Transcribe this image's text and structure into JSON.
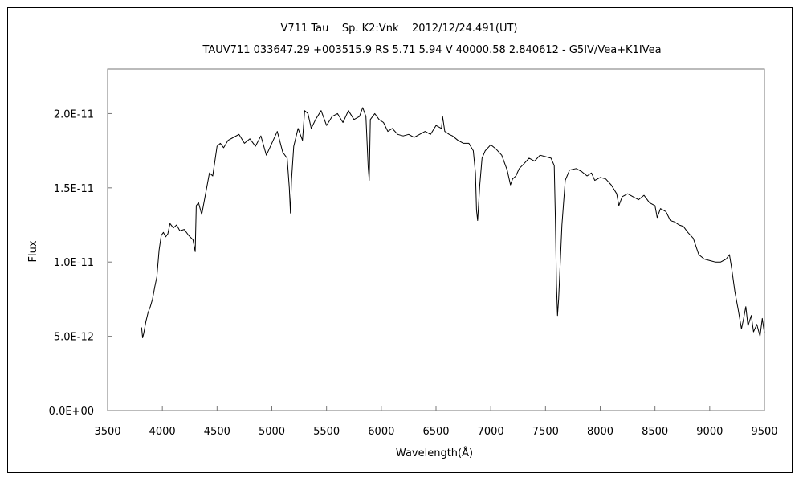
{
  "chart_data": {
    "type": "line",
    "title": "V711 Tau    Sp. K2:Vnk    2012/12/24.491(UT)",
    "subtitle": "TAUV711 033647.29 +003515.9 RS 5.71 5.94 V 40000.58 2.840612 - G5IV/Vea+K1IVea",
    "xlabel": "Wavelength(Å)",
    "ylabel": "Flux",
    "xlim": [
      3500,
      9500
    ],
    "ylim": [
      0,
      2.3e-11
    ],
    "grid": false,
    "x_ticks": [
      3500,
      4000,
      4500,
      5000,
      5500,
      6000,
      6500,
      7000,
      7500,
      8000,
      8500,
      9000,
      9500
    ],
    "x_tick_labels": [
      "3500",
      "4000",
      "4500",
      "5000",
      "5500",
      "6000",
      "6500",
      "7000",
      "7500",
      "8000",
      "8500",
      "9000",
      "9500"
    ],
    "y_ticks": [
      0,
      5e-12,
      1e-11,
      1.5e-11,
      2e-11
    ],
    "y_tick_labels": [
      "0.0E+00",
      "5.0E-12",
      "1.0E-11",
      "1.5E-11",
      "2.0E-11"
    ],
    "series": [
      {
        "color": "#000000",
        "x": [
          3810,
          3820,
          3830,
          3850,
          3870,
          3890,
          3910,
          3930,
          3950,
          3970,
          3990,
          4010,
          4030,
          4050,
          4070,
          4100,
          4130,
          4160,
          4200,
          4240,
          4280,
          4300,
          4310,
          4330,
          4360,
          4400,
          4430,
          4460,
          4500,
          4530,
          4560,
          4600,
          4650,
          4700,
          4750,
          4800,
          4850,
          4900,
          4950,
          5000,
          5050,
          5100,
          5140,
          5160,
          5170,
          5180,
          5200,
          5240,
          5280,
          5300,
          5330,
          5360,
          5400,
          5450,
          5500,
          5550,
          5600,
          5650,
          5700,
          5750,
          5800,
          5830,
          5860,
          5880,
          5890,
          5900,
          5940,
          5980,
          6020,
          6060,
          6100,
          6150,
          6200,
          6250,
          6300,
          6350,
          6400,
          6450,
          6500,
          6550,
          6560,
          6580,
          6620,
          6650,
          6700,
          6750,
          6800,
          6840,
          6860,
          6870,
          6880,
          6900,
          6920,
          6950,
          7000,
          7050,
          7100,
          7150,
          7180,
          7200,
          7230,
          7260,
          7300,
          7350,
          7400,
          7450,
          7500,
          7550,
          7580,
          7590,
          7600,
          7610,
          7620,
          7650,
          7680,
          7720,
          7780,
          7830,
          7880,
          7920,
          7950,
          8000,
          8050,
          8100,
          8150,
          8170,
          8200,
          8250,
          8300,
          8350,
          8400,
          8450,
          8500,
          8520,
          8550,
          8600,
          8640,
          8680,
          8720,
          8760,
          8800,
          8850,
          8900,
          8950,
          9000,
          9050,
          9100,
          9150,
          9180,
          9200,
          9230,
          9260,
          9290,
          9310,
          9330,
          9350,
          9380,
          9400,
          9430,
          9460,
          9480,
          9500
        ],
        "values": [
          5.6e-12,
          4.9e-12,
          5.2e-12,
          6e-12,
          6.6e-12,
          7e-12,
          7.5e-12,
          8.3e-12,
          9e-12,
          1.08e-11,
          1.18e-11,
          1.2e-11,
          1.17e-11,
          1.19e-11,
          1.26e-11,
          1.23e-11,
          1.25e-11,
          1.21e-11,
          1.22e-11,
          1.18e-11,
          1.15e-11,
          1.07e-11,
          1.38e-11,
          1.4e-11,
          1.32e-11,
          1.48e-11,
          1.6e-11,
          1.58e-11,
          1.78e-11,
          1.8e-11,
          1.77e-11,
          1.82e-11,
          1.84e-11,
          1.86e-11,
          1.8e-11,
          1.83e-11,
          1.78e-11,
          1.85e-11,
          1.72e-11,
          1.8e-11,
          1.88e-11,
          1.74e-11,
          1.7e-11,
          1.5e-11,
          1.33e-11,
          1.55e-11,
          1.78e-11,
          1.9e-11,
          1.82e-11,
          2.02e-11,
          2e-11,
          1.9e-11,
          1.96e-11,
          2.02e-11,
          1.92e-11,
          1.98e-11,
          2e-11,
          1.94e-11,
          2.02e-11,
          1.96e-11,
          1.98e-11,
          2.04e-11,
          1.98e-11,
          1.64e-11,
          1.55e-11,
          1.96e-11,
          2e-11,
          1.96e-11,
          1.94e-11,
          1.88e-11,
          1.9e-11,
          1.86e-11,
          1.85e-11,
          1.86e-11,
          1.84e-11,
          1.86e-11,
          1.88e-11,
          1.86e-11,
          1.92e-11,
          1.9e-11,
          1.98e-11,
          1.88e-11,
          1.86e-11,
          1.85e-11,
          1.82e-11,
          1.8e-11,
          1.8e-11,
          1.75e-11,
          1.6e-11,
          1.35e-11,
          1.28e-11,
          1.52e-11,
          1.7e-11,
          1.75e-11,
          1.79e-11,
          1.76e-11,
          1.72e-11,
          1.62e-11,
          1.52e-11,
          1.56e-11,
          1.58e-11,
          1.63e-11,
          1.66e-11,
          1.7e-11,
          1.68e-11,
          1.72e-11,
          1.71e-11,
          1.7e-11,
          1.65e-11,
          1.3e-11,
          8.5e-12,
          6.4e-12,
          7.5e-12,
          1.25e-11,
          1.55e-11,
          1.62e-11,
          1.63e-11,
          1.61e-11,
          1.58e-11,
          1.6e-11,
          1.55e-11,
          1.57e-11,
          1.56e-11,
          1.52e-11,
          1.46e-11,
          1.38e-11,
          1.44e-11,
          1.46e-11,
          1.44e-11,
          1.42e-11,
          1.45e-11,
          1.4e-11,
          1.38e-11,
          1.3e-11,
          1.36e-11,
          1.34e-11,
          1.28e-11,
          1.27e-11,
          1.25e-11,
          1.24e-11,
          1.2e-11,
          1.16e-11,
          1.05e-11,
          1.02e-11,
          1.01e-11,
          1e-11,
          1e-11,
          1.02e-11,
          1.05e-11,
          9.6e-12,
          8e-12,
          6.8e-12,
          5.5e-12,
          6.2e-12,
          7e-12,
          5.7e-12,
          6.4e-12,
          5.3e-12,
          5.8e-12,
          5e-12,
          6.2e-12,
          5.2e-12
        ]
      }
    ]
  }
}
